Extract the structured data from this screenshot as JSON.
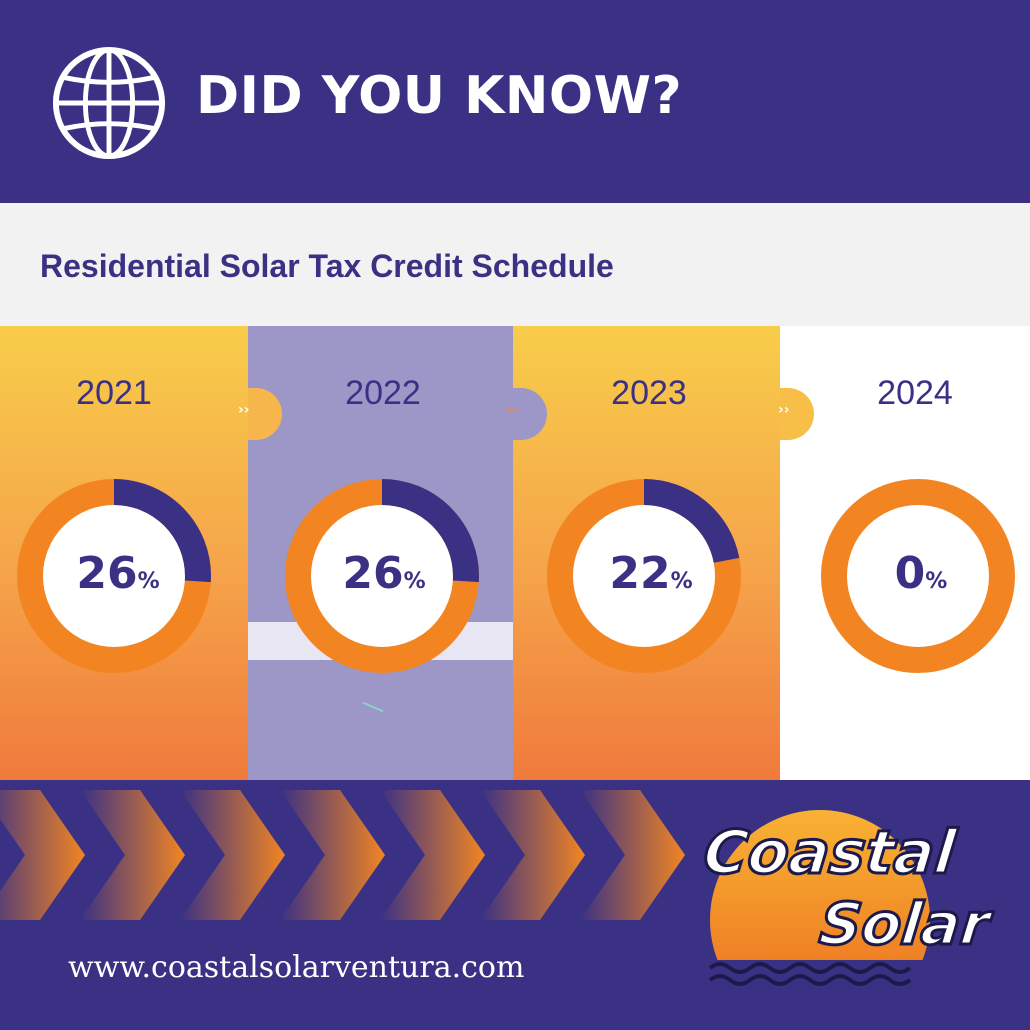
{
  "header": {
    "headline": "DID YOU KNOW?",
    "icon": "globe-icon"
  },
  "subtitle": "Residential Solar Tax Credit Schedule",
  "schedule": [
    {
      "year": "2021",
      "value": "26",
      "unit": "%",
      "fraction": 0.26
    },
    {
      "year": "2022",
      "value": "26",
      "unit": "%",
      "fraction": 0.26
    },
    {
      "year": "2023",
      "value": "22",
      "unit": "%",
      "fraction": 0.22
    },
    {
      "year": "2024",
      "value": "0",
      "unit": "%",
      "fraction": 0
    }
  ],
  "footer": {
    "url": "www.coastalsolarventura.com",
    "logo_line1": "Coastal",
    "logo_line2": "Solar"
  },
  "colors": {
    "navy": "#3a3184",
    "orange": "#f28522",
    "yellow": "#f8cd4a",
    "lavender": "#9c97c6"
  }
}
